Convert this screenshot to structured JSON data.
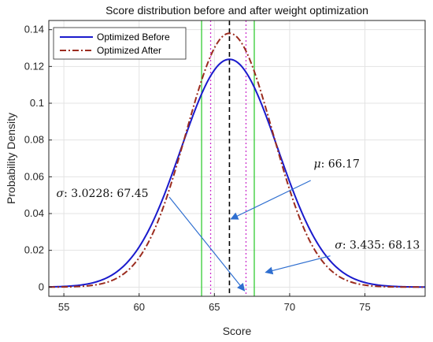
{
  "chart_data": {
    "type": "line",
    "title": "Score distribution before and after weight optimization",
    "xlabel": "Score",
    "ylabel": "Probability Density",
    "xlim": [
      54,
      79
    ],
    "ylim": [
      -0.005,
      0.145
    ],
    "xticks": [
      55,
      60,
      65,
      70,
      75
    ],
    "yticks": [
      0,
      0.02,
      0.04,
      0.06,
      0.08,
      0.1,
      0.12,
      0.14
    ],
    "ytick_labels": [
      "0",
      "0.02",
      "0.04",
      "0.06",
      "0.08",
      "0.1",
      "0.12",
      "0.14"
    ],
    "grid": true,
    "legend_position": "top-left",
    "series": [
      {
        "name": "Optimized Before",
        "mean": 66.0,
        "sigma": 3.22,
        "color": "#1a1acc",
        "style": "solid"
      },
      {
        "name": "Optimized After",
        "mean": 66.0,
        "sigma": 2.89,
        "color": "#9b2c1f",
        "style": "dash-dot"
      }
    ],
    "vertical_lines": [
      {
        "x": 66.0,
        "color": "#000000",
        "style": "dashed"
      },
      {
        "x": 64.15,
        "color": "#33cc33",
        "style": "solid"
      },
      {
        "x": 67.65,
        "color": "#33cc33",
        "style": "solid"
      },
      {
        "x": 64.75,
        "color": "#cc33cc",
        "style": "dotted"
      },
      {
        "x": 67.1,
        "color": "#cc33cc",
        "style": "dotted"
      }
    ],
    "annotations": [
      {
        "symbol": "μ",
        "text": ": 66.17",
        "text_x": 71.6,
        "text_y": 0.065,
        "arrow_from": [
          71.4,
          0.058
        ],
        "arrow_to": [
          66.1,
          0.037
        ]
      },
      {
        "symbol": "σ",
        "text": ": 3.0228: 67.45",
        "text_x": 54.5,
        "text_y": 0.049,
        "arrow_from": [
          62.0,
          0.049
        ],
        "arrow_to": [
          67.0,
          -0.002
        ]
      },
      {
        "symbol": "σ",
        "text": ": 3.435: 68.13",
        "text_x": 73.0,
        "text_y": 0.021,
        "arrow_from": [
          72.7,
          0.017
        ],
        "arrow_to": [
          68.4,
          0.008
        ]
      }
    ]
  }
}
